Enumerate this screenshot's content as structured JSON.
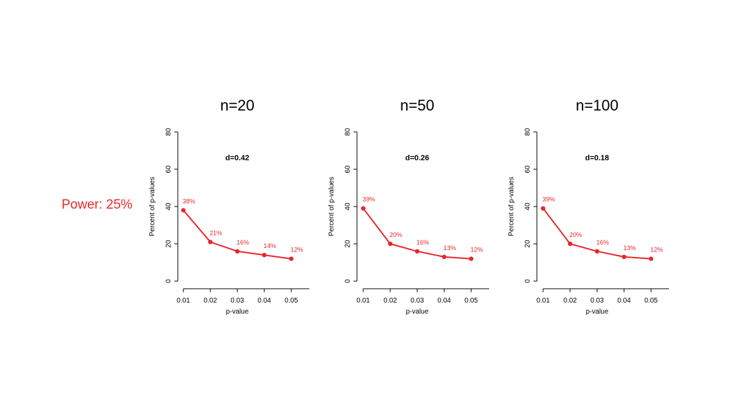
{
  "power_label": "Power: 25%",
  "colors": {
    "series": "#e8262b",
    "axis": "#000000",
    "label": "#e8262b"
  },
  "chart_data": [
    {
      "type": "line",
      "title": "n=20",
      "subtitle": "d=0.42",
      "xlabel": "p-value",
      "ylabel": "Percent of p-values",
      "x": [
        "0.01",
        "0.02",
        "0.03",
        "0.04",
        "0.05"
      ],
      "values": [
        38,
        21,
        16,
        14,
        12
      ],
      "data_labels": [
        "38%",
        "21%",
        "16%",
        "14%",
        "12%"
      ],
      "ylim": [
        0,
        80
      ],
      "yticks": [
        "0",
        "20",
        "40",
        "60",
        "80"
      ],
      "grid": false
    },
    {
      "type": "line",
      "title": "n=50",
      "subtitle": "d=0.26",
      "xlabel": "p-value",
      "ylabel": "Percent of p-values",
      "x": [
        "0.01",
        "0.02",
        "0.03",
        "0.04",
        "0.05"
      ],
      "values": [
        39,
        20,
        16,
        13,
        12
      ],
      "data_labels": [
        "39%",
        "20%",
        "16%",
        "13%",
        "12%"
      ],
      "ylim": [
        0,
        80
      ],
      "yticks": [
        "0",
        "20",
        "40",
        "60",
        "80"
      ],
      "grid": false
    },
    {
      "type": "line",
      "title": "n=100",
      "subtitle": "d=0.18",
      "xlabel": "p-value",
      "ylabel": "Percent of p-values",
      "x": [
        "0.01",
        "0.02",
        "0.03",
        "0.04",
        "0.05"
      ],
      "values": [
        39,
        20,
        16,
        13,
        12
      ],
      "data_labels": [
        "39%",
        "20%",
        "16%",
        "13%",
        "12%"
      ],
      "ylim": [
        0,
        80
      ],
      "yticks": [
        "0",
        "20",
        "40",
        "60",
        "80"
      ],
      "grid": false
    }
  ]
}
